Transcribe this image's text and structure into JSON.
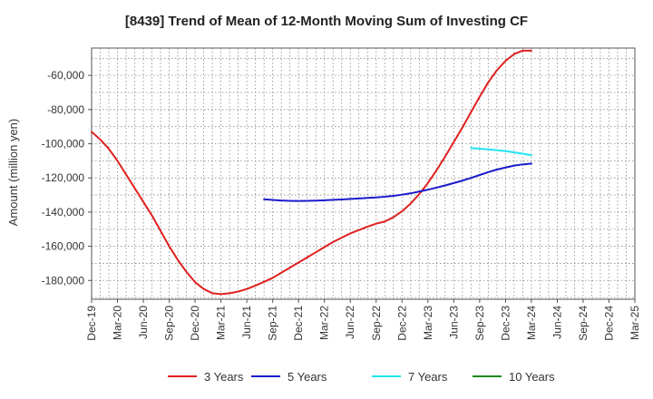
{
  "chart_data": {
    "type": "line",
    "title": "[8439]  Trend of Mean of 12-Month Moving Sum of Investing CF",
    "ylabel": "Amount (million yen)",
    "xlabel": "",
    "x_ticks": [
      "Dec-19",
      "Mar-20",
      "Jun-20",
      "Sep-20",
      "Dec-20",
      "Mar-21",
      "Jun-21",
      "Sep-21",
      "Dec-21",
      "Mar-22",
      "Jun-22",
      "Sep-22",
      "Dec-22",
      "Mar-23",
      "Jun-23",
      "Sep-23",
      "Dec-23",
      "Mar-24",
      "Jun-24",
      "Sep-24",
      "Dec-24",
      "Mar-25"
    ],
    "y_ticks": [
      -180000,
      -160000,
      -140000,
      -120000,
      -100000,
      -80000,
      -60000
    ],
    "y_tick_labels": [
      "-180,000",
      "-160,000",
      "-140,000",
      "-120,000",
      "-100,000",
      "-80,000",
      "-60,000"
    ],
    "ylim": [
      -191000,
      -44000
    ],
    "grid": true,
    "legend_position": "bottom",
    "series": [
      {
        "name": "3 Years",
        "color": "#e02020",
        "x": [
          "2019-12",
          "2020-01",
          "2020-02",
          "2020-03",
          "2020-04",
          "2020-05",
          "2020-06",
          "2020-07",
          "2020-08",
          "2020-09",
          "2020-10",
          "2020-11",
          "2020-12",
          "2021-01",
          "2021-02",
          "2021-03",
          "2021-04",
          "2021-05",
          "2021-06",
          "2021-07",
          "2021-08",
          "2021-09",
          "2021-10",
          "2021-11",
          "2021-12",
          "2022-01",
          "2022-02",
          "2022-03",
          "2022-04",
          "2022-05",
          "2022-06",
          "2022-07",
          "2022-08",
          "2022-09",
          "2022-10",
          "2022-11",
          "2022-12",
          "2023-01",
          "2023-02",
          "2023-03",
          "2023-04",
          "2023-05",
          "2023-06",
          "2023-07",
          "2023-08",
          "2023-09",
          "2023-10",
          "2023-11",
          "2023-12",
          "2024-01",
          "2024-02",
          "2024-03"
        ],
        "values": [
          -93000,
          -97500,
          -103000,
          -110000,
          -118000,
          -126000,
          -134000,
          -142000,
          -151000,
          -160000,
          -168000,
          -175000,
          -181000,
          -185000,
          -187500,
          -188000,
          -187500,
          -186500,
          -185000,
          -183000,
          -180800,
          -178500,
          -175500,
          -172500,
          -169500,
          -166500,
          -163500,
          -160500,
          -157500,
          -155000,
          -152500,
          -150500,
          -148500,
          -146800,
          -145500,
          -143000,
          -139500,
          -135000,
          -129500,
          -123000,
          -115500,
          -107500,
          -99000,
          -90500,
          -81500,
          -72500,
          -64000,
          -57000,
          -51500,
          -47500,
          -45500,
          -45500
        ]
      },
      {
        "name": "5 Years",
        "color": "#1a1acc",
        "x": [
          "2021-08",
          "2021-09",
          "2021-10",
          "2021-11",
          "2021-12",
          "2022-01",
          "2022-02",
          "2022-03",
          "2022-04",
          "2022-05",
          "2022-06",
          "2022-07",
          "2022-08",
          "2022-09",
          "2022-10",
          "2022-11",
          "2022-12",
          "2023-01",
          "2023-02",
          "2023-03",
          "2023-04",
          "2023-05",
          "2023-06",
          "2023-07",
          "2023-08",
          "2023-09",
          "2023-10",
          "2023-11",
          "2023-12",
          "2024-01",
          "2024-02",
          "2024-03"
        ],
        "values": [
          -132500,
          -132900,
          -133200,
          -133400,
          -133500,
          -133400,
          -133300,
          -133100,
          -132800,
          -132600,
          -132300,
          -132000,
          -131700,
          -131400,
          -131000,
          -130500,
          -129800,
          -129000,
          -128000,
          -126900,
          -125700,
          -124400,
          -123000,
          -121600,
          -120000,
          -118300,
          -116600,
          -115100,
          -113900,
          -112800,
          -112100,
          -111600
        ]
      },
      {
        "name": "7 Years",
        "color": "#22e5f0",
        "x": [
          "2023-08",
          "2023-09",
          "2023-10",
          "2023-11",
          "2023-12",
          "2024-01",
          "2024-02",
          "2024-03"
        ],
        "values": [
          -102500,
          -102900,
          -103300,
          -103800,
          -104300,
          -105000,
          -105800,
          -106700
        ]
      },
      {
        "name": "10 Years",
        "color": "#1a8a1a",
        "x": [],
        "values": []
      }
    ]
  }
}
